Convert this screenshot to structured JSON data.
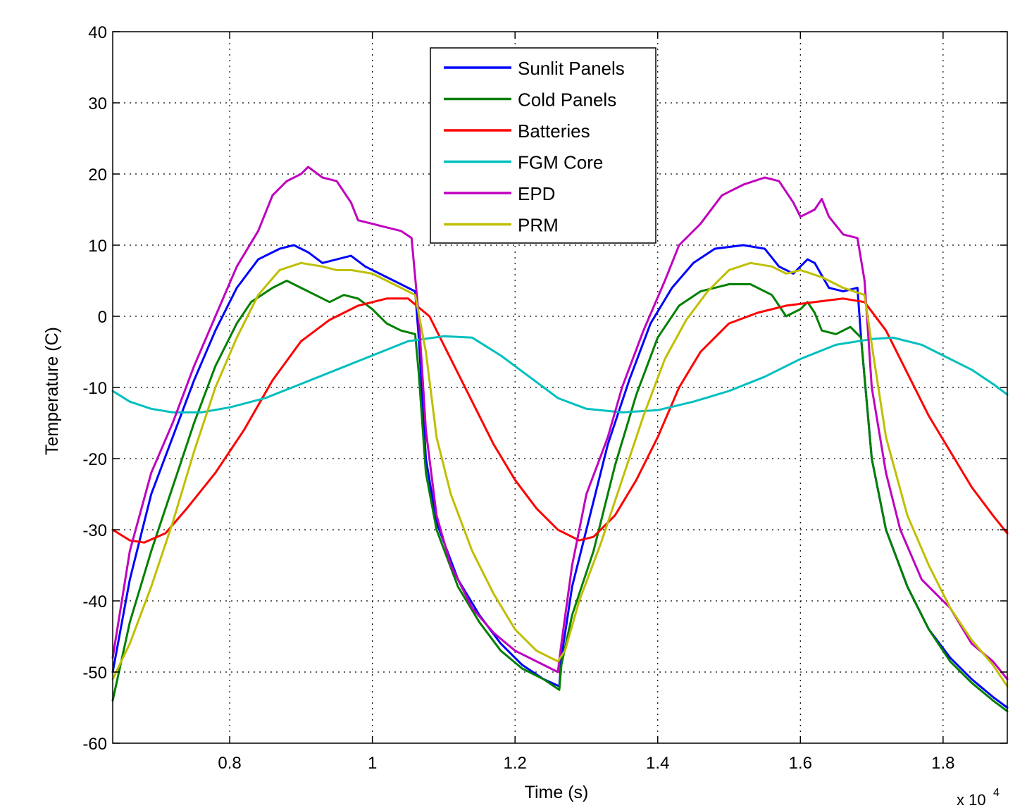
{
  "chart_data": {
    "type": "line",
    "title": "",
    "xlabel": "Time (s)",
    "ylabel": "Temperature (C)",
    "x_multiplier": {
      "base": "x 10",
      "exponent": "4"
    },
    "xlim": [
      0.636,
      1.89
    ],
    "ylim": [
      -60,
      40
    ],
    "xticks": [
      0.8,
      1,
      1.2,
      1.4,
      1.6,
      1.8
    ],
    "xtick_labels": [
      "0.8",
      "1",
      "1.2",
      "1.4",
      "1.6",
      "1.8"
    ],
    "yticks": [
      -60,
      -50,
      -40,
      -30,
      -20,
      -10,
      0,
      10,
      20,
      30,
      40
    ],
    "ytick_labels": [
      "-60",
      "-50",
      "-40",
      "-30",
      "-20",
      "-10",
      "0",
      "10",
      "20",
      "30",
      "40"
    ],
    "grid": true,
    "legend_position": "top-center",
    "series": [
      {
        "name": "Sunlit Panels",
        "color": "#0000ff",
        "points": [
          [
            0.636,
            -50
          ],
          [
            0.66,
            -37
          ],
          [
            0.69,
            -25
          ],
          [
            0.72,
            -17
          ],
          [
            0.75,
            -9
          ],
          [
            0.78,
            -2
          ],
          [
            0.81,
            4
          ],
          [
            0.84,
            8
          ],
          [
            0.87,
            9.5
          ],
          [
            0.89,
            10
          ],
          [
            0.91,
            9
          ],
          [
            0.93,
            7.5
          ],
          [
            0.95,
            8
          ],
          [
            0.97,
            8.5
          ],
          [
            0.99,
            7
          ],
          [
            1.01,
            6
          ],
          [
            1.04,
            4.5
          ],
          [
            1.06,
            3.5
          ],
          [
            1.065,
            -3
          ],
          [
            1.075,
            -20
          ],
          [
            1.09,
            -29
          ],
          [
            1.12,
            -37
          ],
          [
            1.15,
            -42
          ],
          [
            1.18,
            -46
          ],
          [
            1.21,
            -49
          ],
          [
            1.24,
            -51
          ],
          [
            1.262,
            -52
          ],
          [
            1.265,
            -48
          ],
          [
            1.28,
            -38
          ],
          [
            1.3,
            -30
          ],
          [
            1.33,
            -18
          ],
          [
            1.36,
            -9
          ],
          [
            1.39,
            -1
          ],
          [
            1.42,
            4
          ],
          [
            1.45,
            7.5
          ],
          [
            1.48,
            9.5
          ],
          [
            1.52,
            10
          ],
          [
            1.55,
            9.5
          ],
          [
            1.57,
            7
          ],
          [
            1.59,
            6
          ],
          [
            1.61,
            8
          ],
          [
            1.62,
            7.5
          ],
          [
            1.64,
            4
          ],
          [
            1.66,
            3.5
          ],
          [
            1.68,
            4
          ],
          [
            1.685,
            -3
          ],
          [
            1.7,
            -20
          ],
          [
            1.72,
            -30
          ],
          [
            1.75,
            -38
          ],
          [
            1.78,
            -44
          ],
          [
            1.81,
            -48
          ],
          [
            1.84,
            -51
          ],
          [
            1.87,
            -53.5
          ],
          [
            1.89,
            -55
          ]
        ]
      },
      {
        "name": "Cold Panels",
        "color": "#008000",
        "points": [
          [
            0.636,
            -54
          ],
          [
            0.66,
            -43
          ],
          [
            0.69,
            -33
          ],
          [
            0.72,
            -24
          ],
          [
            0.75,
            -15
          ],
          [
            0.78,
            -7
          ],
          [
            0.81,
            -1
          ],
          [
            0.83,
            2
          ],
          [
            0.86,
            4
          ],
          [
            0.88,
            5
          ],
          [
            0.9,
            4
          ],
          [
            0.92,
            3
          ],
          [
            0.94,
            2
          ],
          [
            0.96,
            3
          ],
          [
            0.98,
            2.5
          ],
          [
            1.0,
            1
          ],
          [
            1.02,
            -1
          ],
          [
            1.04,
            -2
          ],
          [
            1.06,
            -2.5
          ],
          [
            1.065,
            -8
          ],
          [
            1.075,
            -22
          ],
          [
            1.09,
            -30
          ],
          [
            1.12,
            -38
          ],
          [
            1.15,
            -43
          ],
          [
            1.18,
            -47
          ],
          [
            1.21,
            -49.5
          ],
          [
            1.24,
            -51
          ],
          [
            1.262,
            -52.5
          ],
          [
            1.265,
            -49
          ],
          [
            1.28,
            -42
          ],
          [
            1.31,
            -33
          ],
          [
            1.34,
            -21
          ],
          [
            1.37,
            -11
          ],
          [
            1.4,
            -3
          ],
          [
            1.43,
            1.5
          ],
          [
            1.46,
            3.5
          ],
          [
            1.5,
            4.5
          ],
          [
            1.53,
            4.5
          ],
          [
            1.56,
            3
          ],
          [
            1.58,
            0
          ],
          [
            1.6,
            1
          ],
          [
            1.61,
            2
          ],
          [
            1.62,
            0.5
          ],
          [
            1.63,
            -2
          ],
          [
            1.65,
            -2.5
          ],
          [
            1.67,
            -1.5
          ],
          [
            1.685,
            -3
          ],
          [
            1.7,
            -20
          ],
          [
            1.72,
            -30
          ],
          [
            1.75,
            -38
          ],
          [
            1.78,
            -44
          ],
          [
            1.81,
            -48.5
          ],
          [
            1.84,
            -51.5
          ],
          [
            1.87,
            -54
          ],
          [
            1.89,
            -55.5
          ]
        ]
      },
      {
        "name": "Batteries",
        "color": "#ff0000",
        "points": [
          [
            0.636,
            -30
          ],
          [
            0.66,
            -31.5
          ],
          [
            0.68,
            -31.8
          ],
          [
            0.71,
            -30.5
          ],
          [
            0.74,
            -27
          ],
          [
            0.78,
            -22
          ],
          [
            0.82,
            -16
          ],
          [
            0.86,
            -9
          ],
          [
            0.9,
            -3.5
          ],
          [
            0.94,
            -0.5
          ],
          [
            0.98,
            1.5
          ],
          [
            1.02,
            2.5
          ],
          [
            1.05,
            2.5
          ],
          [
            1.08,
            0
          ],
          [
            1.11,
            -6
          ],
          [
            1.14,
            -12
          ],
          [
            1.17,
            -18
          ],
          [
            1.2,
            -23
          ],
          [
            1.23,
            -27
          ],
          [
            1.26,
            -30
          ],
          [
            1.29,
            -31.5
          ],
          [
            1.31,
            -31
          ],
          [
            1.34,
            -28
          ],
          [
            1.37,
            -23
          ],
          [
            1.4,
            -17
          ],
          [
            1.43,
            -10
          ],
          [
            1.46,
            -5
          ],
          [
            1.5,
            -1
          ],
          [
            1.54,
            0.5
          ],
          [
            1.58,
            1.5
          ],
          [
            1.62,
            2
          ],
          [
            1.66,
            2.5
          ],
          [
            1.69,
            2
          ],
          [
            1.72,
            -2
          ],
          [
            1.75,
            -8
          ],
          [
            1.78,
            -14
          ],
          [
            1.81,
            -19
          ],
          [
            1.84,
            -24
          ],
          [
            1.87,
            -28
          ],
          [
            1.89,
            -30.5
          ]
        ]
      },
      {
        "name": "FGM Core",
        "color": "#00bfbf",
        "points": [
          [
            0.636,
            -10.5
          ],
          [
            0.66,
            -12
          ],
          [
            0.69,
            -13
          ],
          [
            0.72,
            -13.5
          ],
          [
            0.76,
            -13.5
          ],
          [
            0.8,
            -12.8
          ],
          [
            0.85,
            -11.5
          ],
          [
            0.9,
            -9.5
          ],
          [
            0.95,
            -7.5
          ],
          [
            1.0,
            -5.5
          ],
          [
            1.05,
            -3.5
          ],
          [
            1.1,
            -2.8
          ],
          [
            1.14,
            -3
          ],
          [
            1.18,
            -5.5
          ],
          [
            1.22,
            -8.5
          ],
          [
            1.26,
            -11.5
          ],
          [
            1.3,
            -13
          ],
          [
            1.35,
            -13.5
          ],
          [
            1.4,
            -13.2
          ],
          [
            1.45,
            -12
          ],
          [
            1.5,
            -10.5
          ],
          [
            1.55,
            -8.5
          ],
          [
            1.6,
            -6
          ],
          [
            1.65,
            -4
          ],
          [
            1.7,
            -3.2
          ],
          [
            1.73,
            -3
          ],
          [
            1.77,
            -4
          ],
          [
            1.8,
            -5.5
          ],
          [
            1.84,
            -7.5
          ],
          [
            1.87,
            -9.5
          ],
          [
            1.89,
            -11
          ]
        ]
      },
      {
        "name": "EPD",
        "color": "#bf00bf",
        "points": [
          [
            0.636,
            -48
          ],
          [
            0.66,
            -33
          ],
          [
            0.69,
            -22
          ],
          [
            0.72,
            -15
          ],
          [
            0.75,
            -7
          ],
          [
            0.78,
            0
          ],
          [
            0.81,
            7
          ],
          [
            0.84,
            12
          ],
          [
            0.86,
            17
          ],
          [
            0.88,
            19
          ],
          [
            0.9,
            20
          ],
          [
            0.91,
            21
          ],
          [
            0.93,
            19.5
          ],
          [
            0.95,
            19
          ],
          [
            0.97,
            16
          ],
          [
            0.98,
            13.5
          ],
          [
            1.0,
            13
          ],
          [
            1.02,
            12.5
          ],
          [
            1.04,
            12
          ],
          [
            1.055,
            11
          ],
          [
            1.065,
            0
          ],
          [
            1.075,
            -16
          ],
          [
            1.09,
            -28
          ],
          [
            1.11,
            -35
          ],
          [
            1.14,
            -41
          ],
          [
            1.17,
            -44.5
          ],
          [
            1.2,
            -47
          ],
          [
            1.24,
            -49
          ],
          [
            1.26,
            -50
          ],
          [
            1.265,
            -46
          ],
          [
            1.28,
            -35
          ],
          [
            1.3,
            -25
          ],
          [
            1.33,
            -17
          ],
          [
            1.35,
            -10
          ],
          [
            1.38,
            -2
          ],
          [
            1.41,
            5
          ],
          [
            1.43,
            10
          ],
          [
            1.46,
            13
          ],
          [
            1.49,
            17
          ],
          [
            1.52,
            18.5
          ],
          [
            1.55,
            19.5
          ],
          [
            1.57,
            19
          ],
          [
            1.59,
            16
          ],
          [
            1.6,
            14
          ],
          [
            1.62,
            15
          ],
          [
            1.63,
            16.5
          ],
          [
            1.64,
            14
          ],
          [
            1.66,
            11.5
          ],
          [
            1.68,
            11
          ],
          [
            1.69,
            5
          ],
          [
            1.7,
            -10
          ],
          [
            1.72,
            -22
          ],
          [
            1.74,
            -30
          ],
          [
            1.77,
            -37
          ],
          [
            1.79,
            -39
          ],
          [
            1.81,
            -41
          ],
          [
            1.84,
            -46
          ],
          [
            1.87,
            -48.5
          ],
          [
            1.89,
            -51
          ]
        ]
      },
      {
        "name": "PRM",
        "color": "#bfbf00",
        "points": [
          [
            0.636,
            -51
          ],
          [
            0.66,
            -46
          ],
          [
            0.69,
            -38
          ],
          [
            0.72,
            -29
          ],
          [
            0.75,
            -19
          ],
          [
            0.78,
            -10
          ],
          [
            0.81,
            -3
          ],
          [
            0.84,
            3
          ],
          [
            0.87,
            6.5
          ],
          [
            0.9,
            7.5
          ],
          [
            0.93,
            7
          ],
          [
            0.95,
            6.5
          ],
          [
            0.97,
            6.5
          ],
          [
            1.0,
            6
          ],
          [
            1.03,
            4.5
          ],
          [
            1.06,
            3
          ],
          [
            1.075,
            -5
          ],
          [
            1.09,
            -17
          ],
          [
            1.11,
            -25
          ],
          [
            1.14,
            -33
          ],
          [
            1.17,
            -39
          ],
          [
            1.2,
            -44
          ],
          [
            1.23,
            -47
          ],
          [
            1.26,
            -48.5
          ],
          [
            1.27,
            -47
          ],
          [
            1.29,
            -40
          ],
          [
            1.32,
            -32
          ],
          [
            1.35,
            -23
          ],
          [
            1.38,
            -14
          ],
          [
            1.41,
            -6
          ],
          [
            1.44,
            -0.5
          ],
          [
            1.47,
            3.5
          ],
          [
            1.5,
            6.5
          ],
          [
            1.53,
            7.5
          ],
          [
            1.56,
            7
          ],
          [
            1.58,
            6
          ],
          [
            1.6,
            6.5
          ],
          [
            1.63,
            5.5
          ],
          [
            1.66,
            4
          ],
          [
            1.69,
            3
          ],
          [
            1.7,
            -4
          ],
          [
            1.72,
            -17
          ],
          [
            1.75,
            -28
          ],
          [
            1.78,
            -35
          ],
          [
            1.81,
            -41
          ],
          [
            1.84,
            -45.5
          ],
          [
            1.87,
            -49
          ],
          [
            1.89,
            -52
          ]
        ]
      }
    ]
  }
}
